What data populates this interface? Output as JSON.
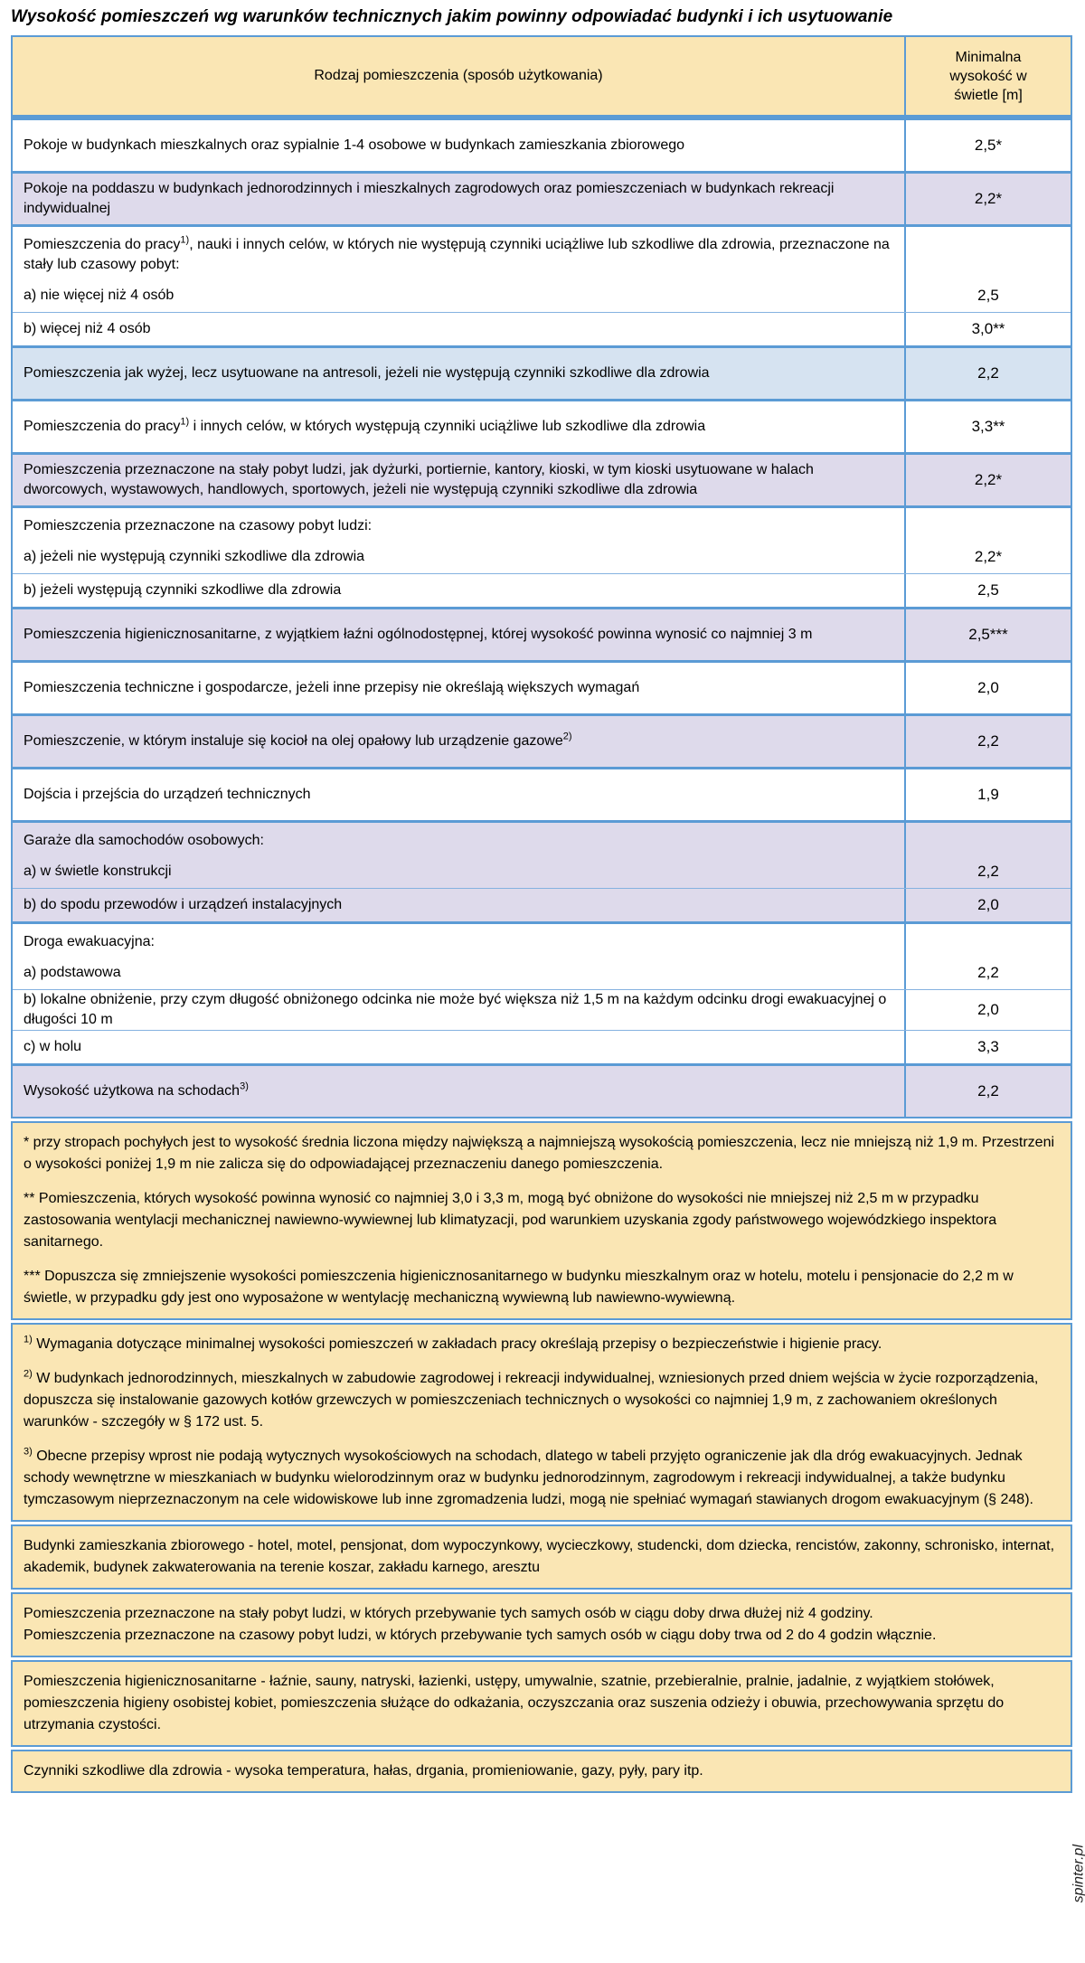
{
  "title": "Wysokość pomieszczeń wg warunków technicznych jakim powinny odpowiadać budynki i ich usytuowanie",
  "watermark": "spinter.pl",
  "colors": {
    "header_bg": "#FAE6B4",
    "row_lavender": "#DEDAEB",
    "row_lightblue": "#D6E3F1",
    "border_blue": "#5B9BD5",
    "note_bg": "#FAE6B4"
  },
  "table": {
    "header": {
      "col1": "Rodzaj pomieszczenia (sposób użytkowania)",
      "col2": "Minimalna wysokość w świetle [m]"
    },
    "rows": [
      {
        "pre": "Pokoje w budynkach mieszkalnych oraz sypialnie 1-4 osobowe w budynkach zamieszkania zbiorowego",
        "sup": "",
        "post": "",
        "value": "2,5*"
      },
      {
        "pre": "Pokoje na poddaszu w budynkach jednorodzinnych i mieszkalnych zagrodowych oraz pomieszczeniach w budynkach rekreacji indywidualnej",
        "sup": "",
        "post": "",
        "value": "2,2*"
      },
      {
        "pre": "Pomieszczenia do pracy",
        "sup": "1)",
        "post": ", nauki i innych celów, w których nie występują czynniki uciążliwe lub szkodliwe dla zdrowia, przeznaczone na stały lub czasowy pobyt:",
        "value": ""
      },
      {
        "pre": "a) nie więcej niż 4 osób",
        "sup": "",
        "post": "",
        "value": "2,5"
      },
      {
        "pre": "b) więcej niż 4 osób",
        "sup": "",
        "post": "",
        "value": "3,0**"
      },
      {
        "pre": "Pomieszczenia jak wyżej, lecz usytuowane na antresoli, jeżeli nie występują czynniki szkodliwe dla zdrowia",
        "sup": "",
        "post": "",
        "value": "2,2"
      },
      {
        "pre": "Pomieszczenia do pracy",
        "sup": "1)",
        "post": " i innych celów, w których występują czynniki uciążliwe lub szkodliwe dla zdrowia",
        "value": "3,3**"
      },
      {
        "pre": "Pomieszczenia przeznaczone na stały pobyt ludzi, jak dyżurki, portiernie, kantory, kioski, w tym kioski usytuowane w halach dworcowych, wystawowych, handlowych, sportowych, jeżeli nie występują czynniki szkodliwe dla zdrowia",
        "sup": "",
        "post": "",
        "value": "2,2*"
      },
      {
        "pre": "Pomieszczenia przeznaczone na czasowy pobyt ludzi:",
        "sup": "",
        "post": "",
        "value": ""
      },
      {
        "pre": "a) jeżeli nie występują czynniki szkodliwe dla zdrowia",
        "sup": "",
        "post": "",
        "value": "2,2*"
      },
      {
        "pre": "b) jeżeli występują czynniki szkodliwe dla zdrowia",
        "sup": "",
        "post": "",
        "value": "2,5"
      },
      {
        "pre": "Pomieszczenia higienicznosanitarne, z wyjątkiem łaźni ogólnodostępnej, której wysokość powinna wynosić co najmniej 3 m",
        "sup": "",
        "post": "",
        "value": "2,5***"
      },
      {
        "pre": "Pomieszczenia techniczne i gospodarcze, jeżeli inne przepisy nie określają większych wymagań",
        "sup": "",
        "post": "",
        "value": "2,0"
      },
      {
        "pre": "Pomieszczenie, w którym instaluje się kocioł na olej opałowy lub urządzenie gazowe",
        "sup": "2)",
        "post": "",
        "value": "2,2"
      },
      {
        "pre": "Dojścia i przejścia do urządzeń technicznych",
        "sup": "",
        "post": "",
        "value": "1,9"
      },
      {
        "pre": "Garaże dla samochodów osobowych:",
        "sup": "",
        "post": "",
        "value": ""
      },
      {
        "pre": "a) w świetle konstrukcji",
        "sup": "",
        "post": "",
        "value": "2,2"
      },
      {
        "pre": "b) do spodu przewodów i urządzeń instalacyjnych",
        "sup": "",
        "post": "",
        "value": "2,0"
      },
      {
        "pre": "Droga ewakuacyjna:",
        "sup": "",
        "post": "",
        "value": ""
      },
      {
        "pre": "a) podstawowa",
        "sup": "",
        "post": "",
        "value": "2,2"
      },
      {
        "pre": "b) lokalne obniżenie, przy czym długość obniżonego odcinka nie może być większa niż 1,5 m na każdym odcinku drogi ewakuacyjnej o długości 10 m",
        "sup": "",
        "post": "",
        "value": "2,0"
      },
      {
        "pre": "c) w holu",
        "sup": "",
        "post": "",
        "value": "3,3"
      },
      {
        "pre": "Wysokość użytkowa na schodach",
        "sup": "3)",
        "post": "",
        "value": "2,2"
      }
    ]
  },
  "notes": {
    "asterisk": [
      {
        "text": "* przy stropach pochyłych jest to wysokość średnia liczona między największą a najmniejszą wysokością pomieszczenia, lecz nie mniejszą niż 1,9 m. Przestrzeni o wysokości poniżej 1,9 m nie zalicza się do odpowiadającej przeznaczeniu danego pomieszczenia."
      },
      {
        "text": "** Pomieszczenia, których wysokość powinna wynosić co najmniej 3,0 i 3,3 m, mogą być obniżone do wysokości nie mniejszej niż 2,5 m w przypadku zastosowania wentylacji mechanicznej nawiewno-wywiewnej lub klimatyzacji, pod warunkiem uzyskania zgody państwowego wojewódzkiego inspektora sanitarnego."
      },
      {
        "text": "*** Dopuszcza się zmniejszenie wysokości pomieszczenia higienicznosanitarnego w budynku mieszkalnym oraz w hotelu, motelu i pensjonacie do 2,2 m w świetle, w przypadku gdy jest ono wyposażone w wentylację mechaniczną wywiewną lub nawiewno-wywiewną."
      }
    ],
    "numbered": [
      {
        "sup": "1)",
        "text": " Wymagania dotyczące minimalnej wysokości pomieszczeń w zakładach pracy określają przepisy o bezpieczeństwie i higienie pracy."
      },
      {
        "sup": "2)",
        "text": " W budynkach jednorodzinnych, mieszkalnych w zabudowie zagrodowej i rekreacji indywidualnej, wzniesionych przed dniem wejścia w życie rozporządzenia, dopuszcza się instalowanie gazowych kotłów grzewczych w pomieszczeniach technicznych o wysokości co najmniej 1,9 m, z zachowaniem określonych warunków - szczegóły w § 172 ust. 5."
      },
      {
        "sup": "3)",
        "text": " Obecne przepisy wprost nie podają wytycznych wysokościowych na schodach, dlatego w tabeli przyjęto ograniczenie jak dla dróg ewakuacyjnych. Jednak schody wewnętrzne w mieszkaniach w budynku wielorodzinnym oraz w budynku jednorodzinnym, zagrodowym i rekreacji indywidualnej, a także budynku tymczasowym nieprzeznaczonym na cele widowiskowe lub inne zgromadzenia ludzi, mogą nie spełniać wymagań stawianych drogom ewakuacyjnym (§ 248)."
      }
    ],
    "definitions": [
      {
        "text": "Budynki zamieszkania zbiorowego - hotel, motel, pensjonat, dom wypoczynkowy, wycieczkowy, studencki, dom dziecka, rencistów, zakonny, schronisko, internat, akademik, budynek zakwaterowania na terenie koszar, zakładu karnego, aresztu"
      },
      {
        "text": "Pomieszczenia przeznaczone na stały pobyt ludzi, w których przebywanie tych samych osób w ciągu doby drwa dłużej niż 4 godziny."
      },
      {
        "text": "Pomieszczenia przeznaczone na czasowy pobyt ludzi, w których przebywanie tych samych osób w ciągu  doby trwa od 2 do 4 godzin włącznie."
      },
      {
        "text": "Pomieszczenia higienicznosanitarne - łaźnie, sauny, natryski, łazienki, ustępy, umywalnie, szatnie, przebieralnie, pralnie, jadalnie, z wyjątkiem stołówek, pomieszczenia higieny osobistej kobiet, pomieszczenia służące do odkażania, oczyszczania oraz suszenia odzieży i obuwia, przechowywania sprzętu do utrzymania czystości."
      },
      {
        "text": "Czynniki szkodliwe dla zdrowia - wysoka temperatura, hałas, drgania, promieniowanie, gazy, pyły, pary itp."
      }
    ]
  }
}
